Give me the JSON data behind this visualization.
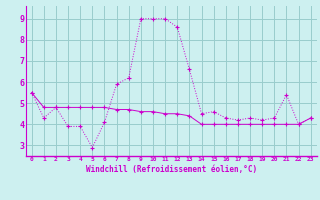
{
  "xlabel": "Windchill (Refroidissement éolien,°C)",
  "ylabel": "",
  "bg_color": "#cdf0f0",
  "line_color": "#cc00cc",
  "grid_color": "#99cccc",
  "xlim": [
    -0.5,
    23.5
  ],
  "ylim": [
    2.5,
    9.6
  ],
  "yticks": [
    3,
    4,
    5,
    6,
    7,
    8,
    9
  ],
  "xticks": [
    0,
    1,
    2,
    3,
    4,
    5,
    6,
    7,
    8,
    9,
    10,
    11,
    12,
    13,
    14,
    15,
    16,
    17,
    18,
    19,
    20,
    21,
    22,
    23
  ],
  "series1_x": [
    0,
    1,
    2,
    3,
    4,
    5,
    6,
    7,
    8,
    9,
    10,
    11,
    12,
    13,
    14,
    15,
    16,
    17,
    18,
    19,
    20,
    21,
    22,
    23
  ],
  "series1_y": [
    5.5,
    4.3,
    4.8,
    3.9,
    3.9,
    2.9,
    4.1,
    5.9,
    6.2,
    9.0,
    9.0,
    9.0,
    8.6,
    6.6,
    4.5,
    4.6,
    4.3,
    4.2,
    4.3,
    4.2,
    4.3,
    5.4,
    4.0,
    4.3
  ],
  "series2_x": [
    0,
    1,
    2,
    3,
    4,
    5,
    6,
    7,
    8,
    9,
    10,
    11,
    12,
    13,
    14,
    15,
    16,
    17,
    18,
    19,
    20,
    21,
    22,
    23
  ],
  "series2_y": [
    5.5,
    4.8,
    4.8,
    4.8,
    4.8,
    4.8,
    4.8,
    4.7,
    4.7,
    4.6,
    4.6,
    4.5,
    4.5,
    4.4,
    4.0,
    4.0,
    4.0,
    4.0,
    4.0,
    4.0,
    4.0,
    4.0,
    4.0,
    4.3
  ]
}
